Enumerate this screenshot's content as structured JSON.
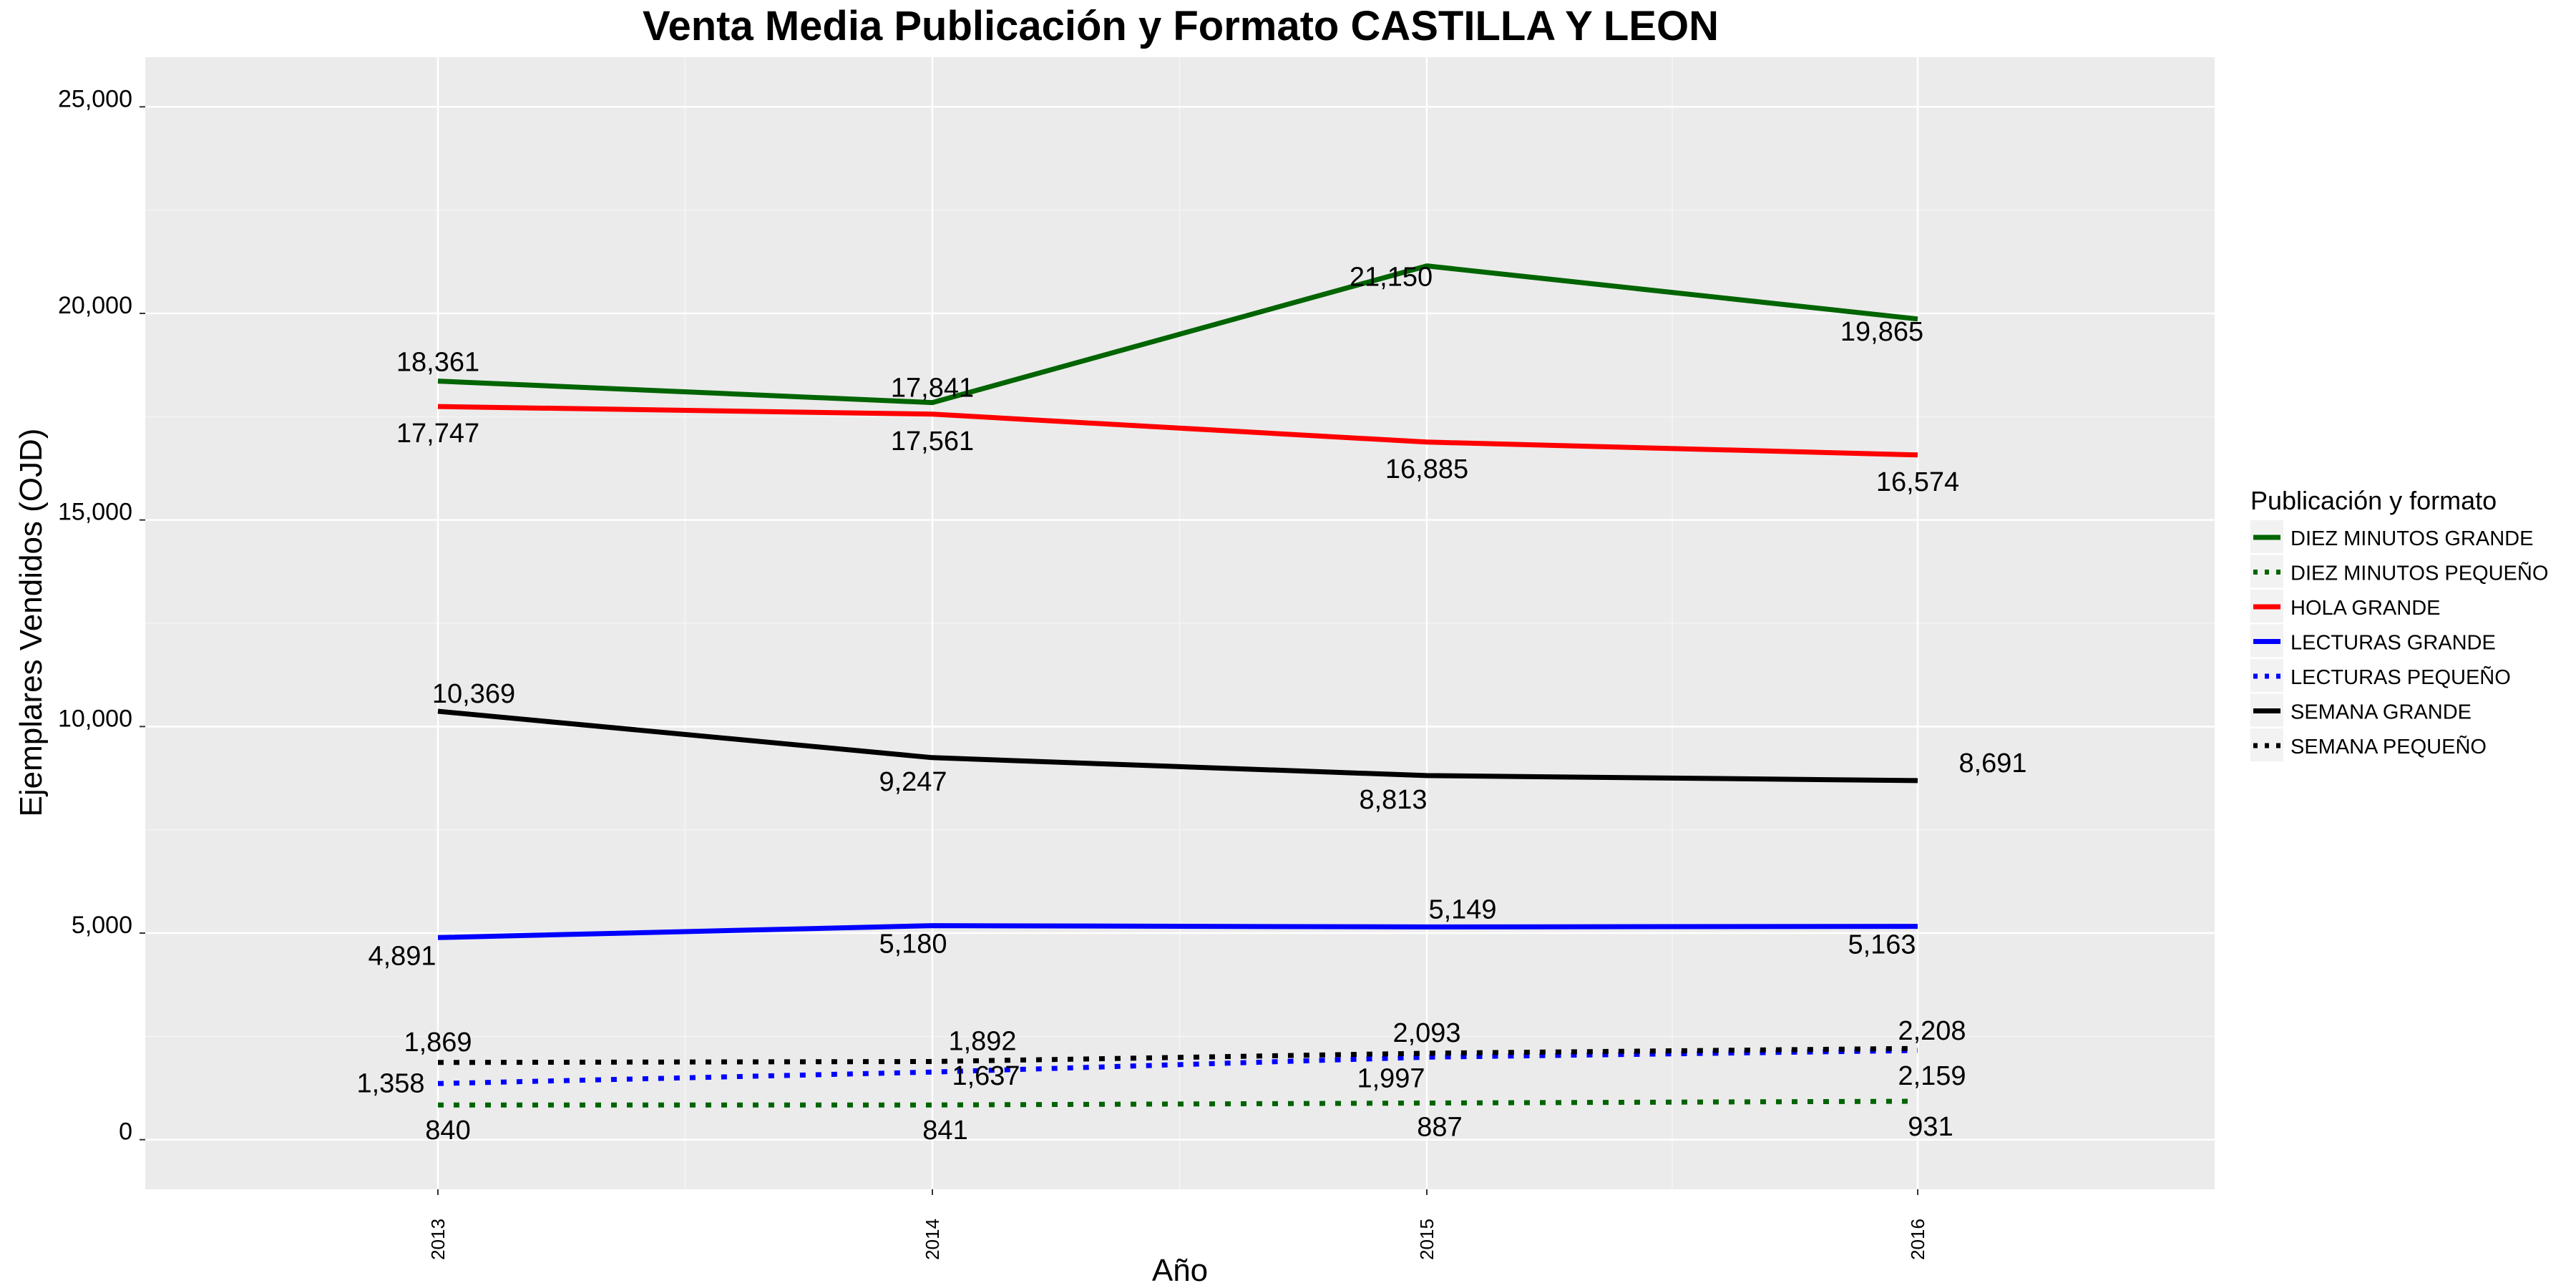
{
  "chart_data": {
    "type": "line",
    "title": "Venta Media Publicación y Formato  CASTILLA Y LEON",
    "xlabel": "Año",
    "ylabel": "Ejemplares Vendidos (OJD)",
    "x": [
      "2013",
      "2014",
      "2015",
      "2016"
    ],
    "ylim": [
      -1200,
      26200
    ],
    "yticks": [
      0,
      5000,
      10000,
      15000,
      20000,
      25000
    ],
    "ytick_labels": [
      "0",
      "5,000",
      "10,000",
      "15,000",
      "20,000",
      "25,000"
    ],
    "grid": true,
    "legend_title": "Publicación y formato",
    "legend_position": "right",
    "series": [
      {
        "name": "DIEZ MINUTOS GRANDE",
        "color": "#006400",
        "style": "solid",
        "values": [
          18361,
          17841,
          21150,
          19865
        ],
        "labels": [
          "18,361",
          "17,841",
          "21,150",
          "19,865"
        ]
      },
      {
        "name": "DIEZ MINUTOS PEQUEÑO",
        "color": "#006400",
        "style": "dotted",
        "values": [
          840,
          841,
          887,
          931
        ],
        "labels": [
          "840",
          "841",
          "887",
          "931"
        ]
      },
      {
        "name": "HOLA GRANDE",
        "color": "#ff0000",
        "style": "solid",
        "values": [
          17747,
          17561,
          16885,
          16574
        ],
        "labels": [
          "17,747",
          "17,561",
          "16,885",
          "16,574"
        ]
      },
      {
        "name": "LECTURAS GRANDE",
        "color": "#0000ff",
        "style": "solid",
        "values": [
          4891,
          5180,
          5149,
          5163
        ],
        "labels": [
          "4,891",
          "5,180",
          "5,149",
          "5,163"
        ]
      },
      {
        "name": "LECTURAS PEQUEÑO",
        "color": "#0000ff",
        "style": "dotted",
        "values": [
          1358,
          1637,
          1997,
          2159
        ],
        "labels": [
          "1,358",
          "1,637",
          "1,997",
          "2,159"
        ]
      },
      {
        "name": "SEMANA GRANDE",
        "color": "#000000",
        "style": "solid",
        "values": [
          10369,
          9247,
          8813,
          8691
        ],
        "labels": [
          "10,369",
          "9,247",
          "8,813",
          "8,691"
        ]
      },
      {
        "name": "SEMANA PEQUEÑO",
        "color": "#000000",
        "style": "dotted",
        "values": [
          1869,
          1892,
          2093,
          2208
        ],
        "labels": [
          "1,869",
          "1,892",
          "2,093",
          "2,208"
        ]
      }
    ]
  }
}
